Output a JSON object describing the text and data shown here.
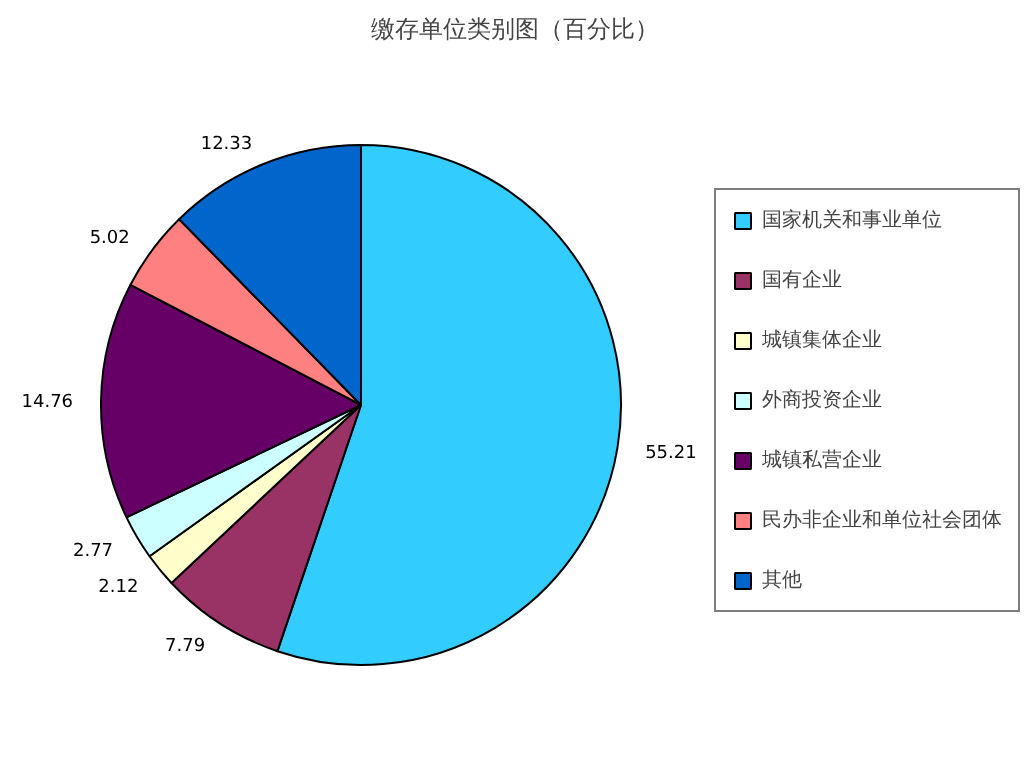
{
  "chart_data": {
    "type": "pie",
    "title": "缴存单位类别图（百分比）",
    "categories": [
      "国家机关和事业单位",
      "国有企业",
      "城镇集体企业",
      "外商投资企业",
      "城镇私营企业",
      "民办非企业和单位社会团体",
      "其他"
    ],
    "values": [
      55.21,
      7.79,
      2.12,
      2.77,
      14.76,
      5.02,
      12.33
    ],
    "colors": [
      "#33ccff",
      "#993366",
      "#ffffcc",
      "#ccffff",
      "#660066",
      "#ff8080",
      "#0066cc"
    ],
    "data_labels": true,
    "legend": "right"
  }
}
